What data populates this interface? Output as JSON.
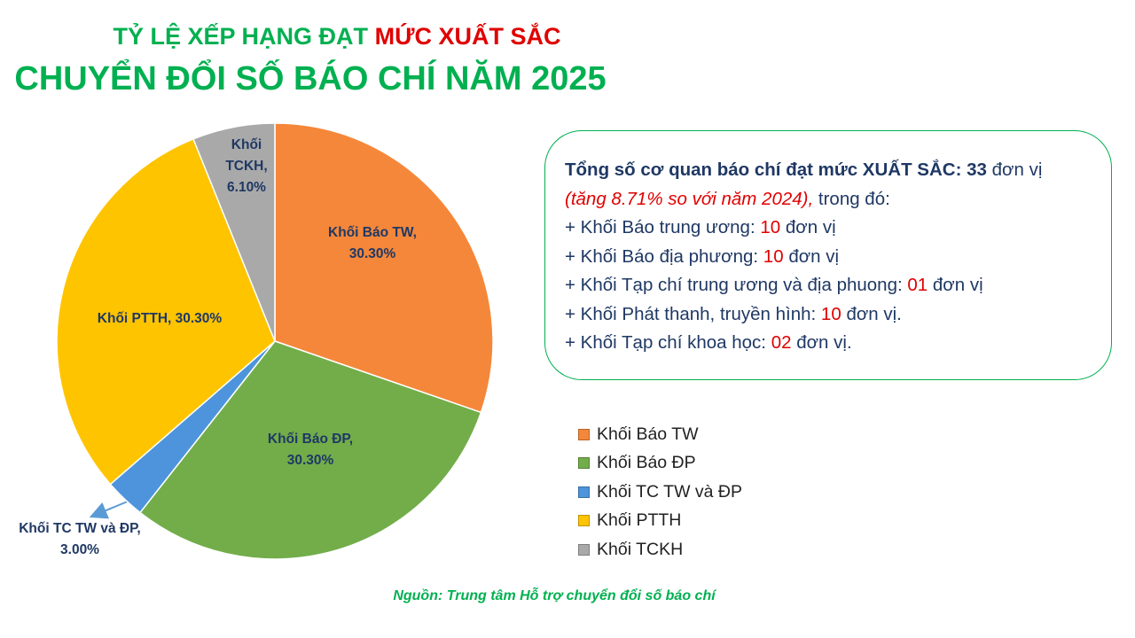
{
  "chart_data": {
    "type": "pie",
    "title_part1": "TỶ LỆ XẾP HẠNG ĐẠT",
    "title_part2": "MỨC XUẤT SẮC",
    "subtitle": "CHUYỂN ĐỔI SỐ BÁO CHÍ NĂM 2025",
    "categories": [
      "Khối Báo TW",
      "Khối Báo ĐP",
      "Khối TC TW và ĐP",
      "Khối PTTH",
      "Khối TCKH"
    ],
    "values": [
      30.3,
      30.3,
      3.0,
      30.3,
      6.1
    ],
    "value_labels": [
      "Khối Báo TW, 30.30%",
      "Khối Báo ĐP, 30.30%",
      "Khối TC TW và ĐP, 3.00%",
      "Khối PTTH, 30.30%",
      "Khối TCKH, 6.10%"
    ],
    "colors": [
      "#f5873a",
      "#72ad4a",
      "#4d94dc",
      "#ffc400",
      "#a9a9a9"
    ],
    "legend": "right",
    "source": "Nguồn: Trung tâm Hỗ trợ chuyển đổi số báo chí"
  },
  "summary": {
    "heading": "Tổng số cơ quan báo chí đạt mức XUẤT SẮC: 33",
    "heading_unit": "đơn vị",
    "note": "(tăng 8.71% so với năm 2024),",
    "note_tail": "trong đó:",
    "items": [
      {
        "text": "+ Khối Báo trung ương:",
        "count": "10",
        "unit": "đơn vị"
      },
      {
        "text": "+ Khối Báo địa phương:",
        "count": "10",
        "unit": "đơn vị"
      },
      {
        "text": "+ Khối Tạp chí trung ương và địa phuong:",
        "count": "01",
        "unit": "đơn vị"
      },
      {
        "text": "+ Khối Phát thanh, truyền hình:",
        "count": "10",
        "unit": "đơn vị."
      },
      {
        "text": "+ Khối Tạp chí khoa học:",
        "count": "02",
        "unit": "đơn vị."
      }
    ]
  }
}
